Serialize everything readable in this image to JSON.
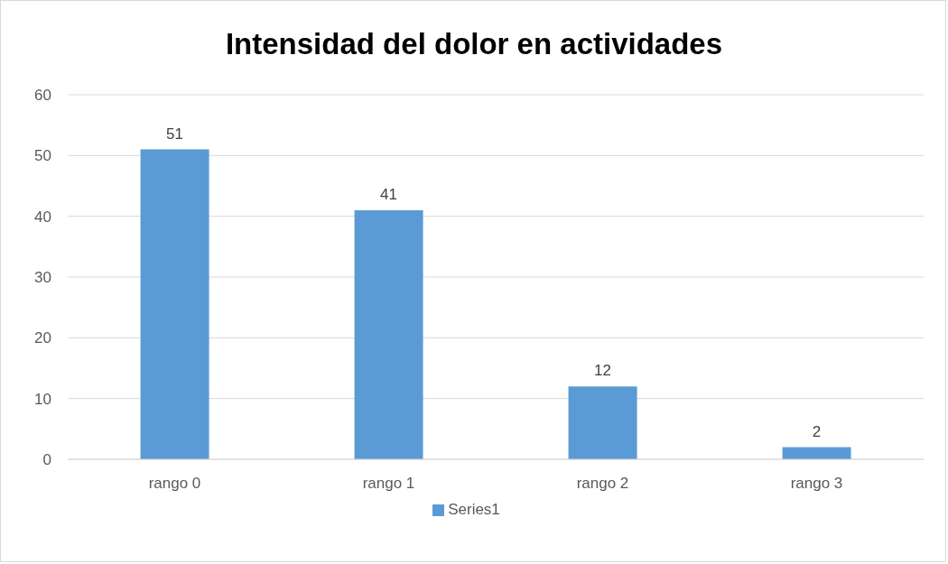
{
  "chart_data": {
    "type": "bar",
    "title": "Intensidad del dolor en actividades",
    "categories": [
      "rango 0",
      "rango 1",
      "rango 2",
      "rango 3"
    ],
    "series": [
      {
        "name": "Series1",
        "color": "#5b9bd5",
        "values": [
          51,
          41,
          12,
          2
        ]
      }
    ],
    "ylim": [
      0,
      60
    ],
    "yticks": [
      0,
      10,
      20,
      30,
      40,
      50,
      60
    ],
    "grid": "y",
    "legend": "bottom",
    "data_labels": true
  }
}
